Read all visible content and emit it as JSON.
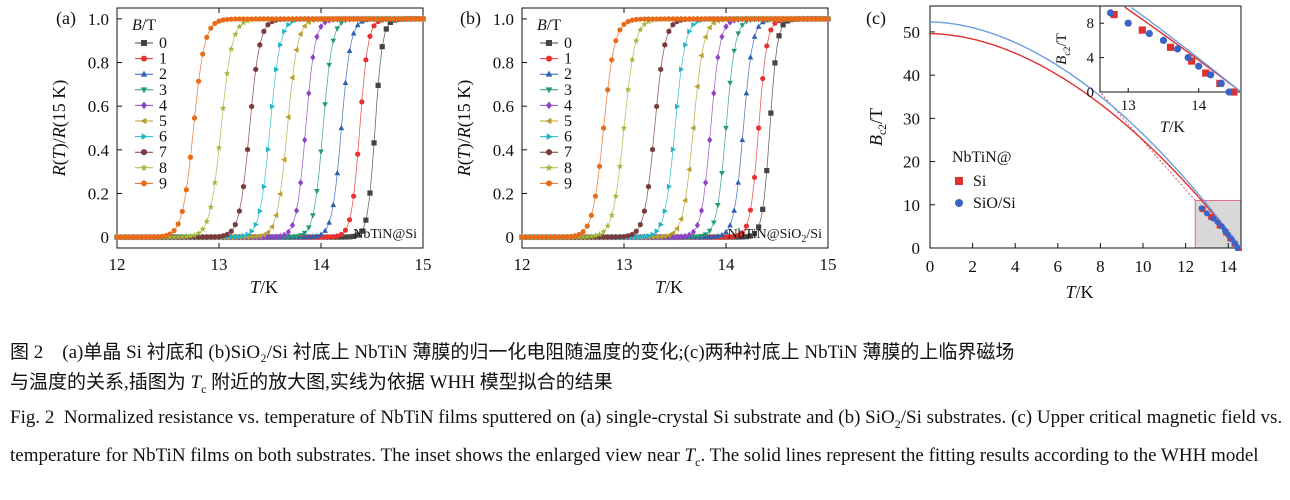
{
  "chart_data": [
    {
      "type": "scatter",
      "panel": "(a)",
      "xlabel_var": "T",
      "xlabel_unit": "/K",
      "ylabel": "R(T)/R(15 K)",
      "xlim": [
        12,
        15
      ],
      "ylim": [
        -0.05,
        1.05
      ],
      "xticks": [
        "12",
        "13",
        "14",
        "15"
      ],
      "yticks": [
        "0",
        "0.2",
        "0.4",
        "0.6",
        "0.8",
        "1.0"
      ],
      "legend_title_var": "B",
      "legend_title_unit": "/T",
      "legend_placement": "upper-left",
      "annotation": "NbTiN@Si",
      "series": [
        {
          "name": "0",
          "Tc": 14.53,
          "width": 0.08,
          "color": "#444444",
          "marker": "square"
        },
        {
          "name": "1",
          "Tc": 14.38,
          "width": 0.09,
          "color": "#e8312e",
          "marker": "circle"
        },
        {
          "name": "2",
          "Tc": 14.2,
          "width": 0.1,
          "color": "#2f5fb3",
          "marker": "triangle-up"
        },
        {
          "name": "3",
          "Tc": 14.02,
          "width": 0.1,
          "color": "#239a7a",
          "marker": "triangle-down"
        },
        {
          "name": "4",
          "Tc": 13.85,
          "width": 0.1,
          "color": "#8e44c5",
          "marker": "diamond"
        },
        {
          "name": "5",
          "Tc": 13.67,
          "width": 0.11,
          "color": "#b8a02a",
          "marker": "triangle-left"
        },
        {
          "name": "6",
          "Tc": 13.5,
          "width": 0.11,
          "color": "#1fb5c7",
          "marker": "triangle-right"
        },
        {
          "name": "7",
          "Tc": 13.3,
          "width": 0.11,
          "color": "#7a3b3b",
          "marker": "hexagon"
        },
        {
          "name": "8",
          "Tc": 13.02,
          "width": 0.12,
          "color": "#9fb93a",
          "marker": "star"
        },
        {
          "name": "9",
          "Tc": 12.75,
          "width": 0.12,
          "color": "#e96a18",
          "marker": "circle"
        }
      ]
    },
    {
      "type": "scatter",
      "panel": "(b)",
      "xlabel_var": "T",
      "xlabel_unit": "/K",
      "ylabel": "R(T)/R(15 K)",
      "xlim": [
        12,
        15
      ],
      "ylim": [
        -0.05,
        1.05
      ],
      "xticks": [
        "12",
        "13",
        "14",
        "15"
      ],
      "yticks": [
        "0",
        "0.2",
        "0.4",
        "0.6",
        "0.8",
        "1.0"
      ],
      "legend_title_var": "B",
      "legend_title_unit": "/T",
      "legend_placement": "upper-left",
      "annotation": "NbTiN@SiO₂/Si",
      "series": [
        {
          "name": "0",
          "Tc": 14.43,
          "width": 0.08,
          "color": "#444444",
          "marker": "square"
        },
        {
          "name": "1",
          "Tc": 14.32,
          "width": 0.09,
          "color": "#e8312e",
          "marker": "circle"
        },
        {
          "name": "2",
          "Tc": 14.17,
          "width": 0.1,
          "color": "#2f5fb3",
          "marker": "triangle-up"
        },
        {
          "name": "3",
          "Tc": 14.0,
          "width": 0.1,
          "color": "#239a7a",
          "marker": "triangle-down"
        },
        {
          "name": "4",
          "Tc": 13.85,
          "width": 0.1,
          "color": "#8e44c5",
          "marker": "diamond"
        },
        {
          "name": "5",
          "Tc": 13.68,
          "width": 0.11,
          "color": "#b8a02a",
          "marker": "triangle-left"
        },
        {
          "name": "6",
          "Tc": 13.5,
          "width": 0.11,
          "color": "#1fb5c7",
          "marker": "triangle-right"
        },
        {
          "name": "7",
          "Tc": 13.3,
          "width": 0.11,
          "color": "#7a3b3b",
          "marker": "hexagon"
        },
        {
          "name": "8",
          "Tc": 13.0,
          "width": 0.12,
          "color": "#9fb93a",
          "marker": "star"
        },
        {
          "name": "9",
          "Tc": 12.8,
          "width": 0.12,
          "color": "#e96a18",
          "marker": "circle"
        }
      ]
    },
    {
      "type": "line",
      "panel": "(c)",
      "xlabel_var": "T",
      "xlabel_unit": "/K",
      "ylabel_var": "B",
      "ylabel_sub": "c2",
      "ylabel_unit": "/T",
      "xlim": [
        0,
        14.6
      ],
      "ylim": [
        0,
        56
      ],
      "xticks": [
        0,
        2,
        4,
        6,
        8,
        10,
        12,
        14
      ],
      "yticks": [
        0,
        10,
        20,
        30,
        40,
        50
      ],
      "legend_title": "NbTiN@",
      "legend_placement": "center-right",
      "series": [
        {
          "name": "Si",
          "color": "#e03030",
          "marker": "square",
          "B0": 49.6,
          "Tc": 14.6,
          "points": [
            [
              12.8,
              9.0
            ],
            [
              13.2,
              7.2
            ],
            [
              13.6,
              5.2
            ],
            [
              13.9,
              3.6
            ],
            [
              14.1,
              2.2
            ],
            [
              14.3,
              1.0
            ],
            [
              14.5,
              0.0
            ]
          ]
        },
        {
          "name": "SiO/Si",
          "color": "#3a63c8",
          "line_color": "#6a9ee0",
          "marker": "circle",
          "B0": 52.3,
          "Tc": 14.6,
          "points": [
            [
              12.75,
              9.2
            ],
            [
              13.0,
              8.0
            ],
            [
              13.3,
              6.8
            ],
            [
              13.5,
              6.0
            ],
            [
              13.7,
              5.0
            ],
            [
              13.85,
              4.0
            ],
            [
              14.0,
              3.0
            ],
            [
              14.17,
              2.0
            ],
            [
              14.32,
              1.0
            ],
            [
              14.43,
              0.0
            ]
          ]
        }
      ],
      "inset": {
        "xlim": [
          12.6,
          14.6
        ],
        "ylim": [
          0,
          10
        ],
        "xticks": [
          13,
          14
        ],
        "yticks": [
          0,
          4,
          8
        ],
        "xlabel_var": "T",
        "xlabel_unit": "/K",
        "ylabel_var": "B",
        "ylabel_sub": "c2",
        "ylabel_unit": "/T"
      }
    }
  ],
  "caption_cn": {
    "line1": "图 2　(a)单晶 Si 衬底和 (b)SiO₂/Si 衬底上 NbTiN 薄膜的归一化电阻随温度的变化;(c)两种衬底上 NbTiN 薄膜的上临界磁场",
    "line2a": "与温度的关系,插图为 ",
    "line2b": "T",
    "line2c": "c",
    "line2d": " 附近的放大图,实线为依据 WHH 模型拟合的结果"
  },
  "caption_en": {
    "text_a": "Fig. 2  Normalized resistance vs. temperature of NbTiN films sputtered on (a) single-crystal Si substrate and (b) SiO",
    "sub1": "2",
    "text_b": "/Si substrates. (c) Upper critical magnetic field vs. temperature for NbTiN films on both substrates. The inset shows the enlarged view near ",
    "tvar": "T",
    "sub2": "c",
    "text_c": ". The solid lines represent the fitting results according to the WHH model"
  }
}
